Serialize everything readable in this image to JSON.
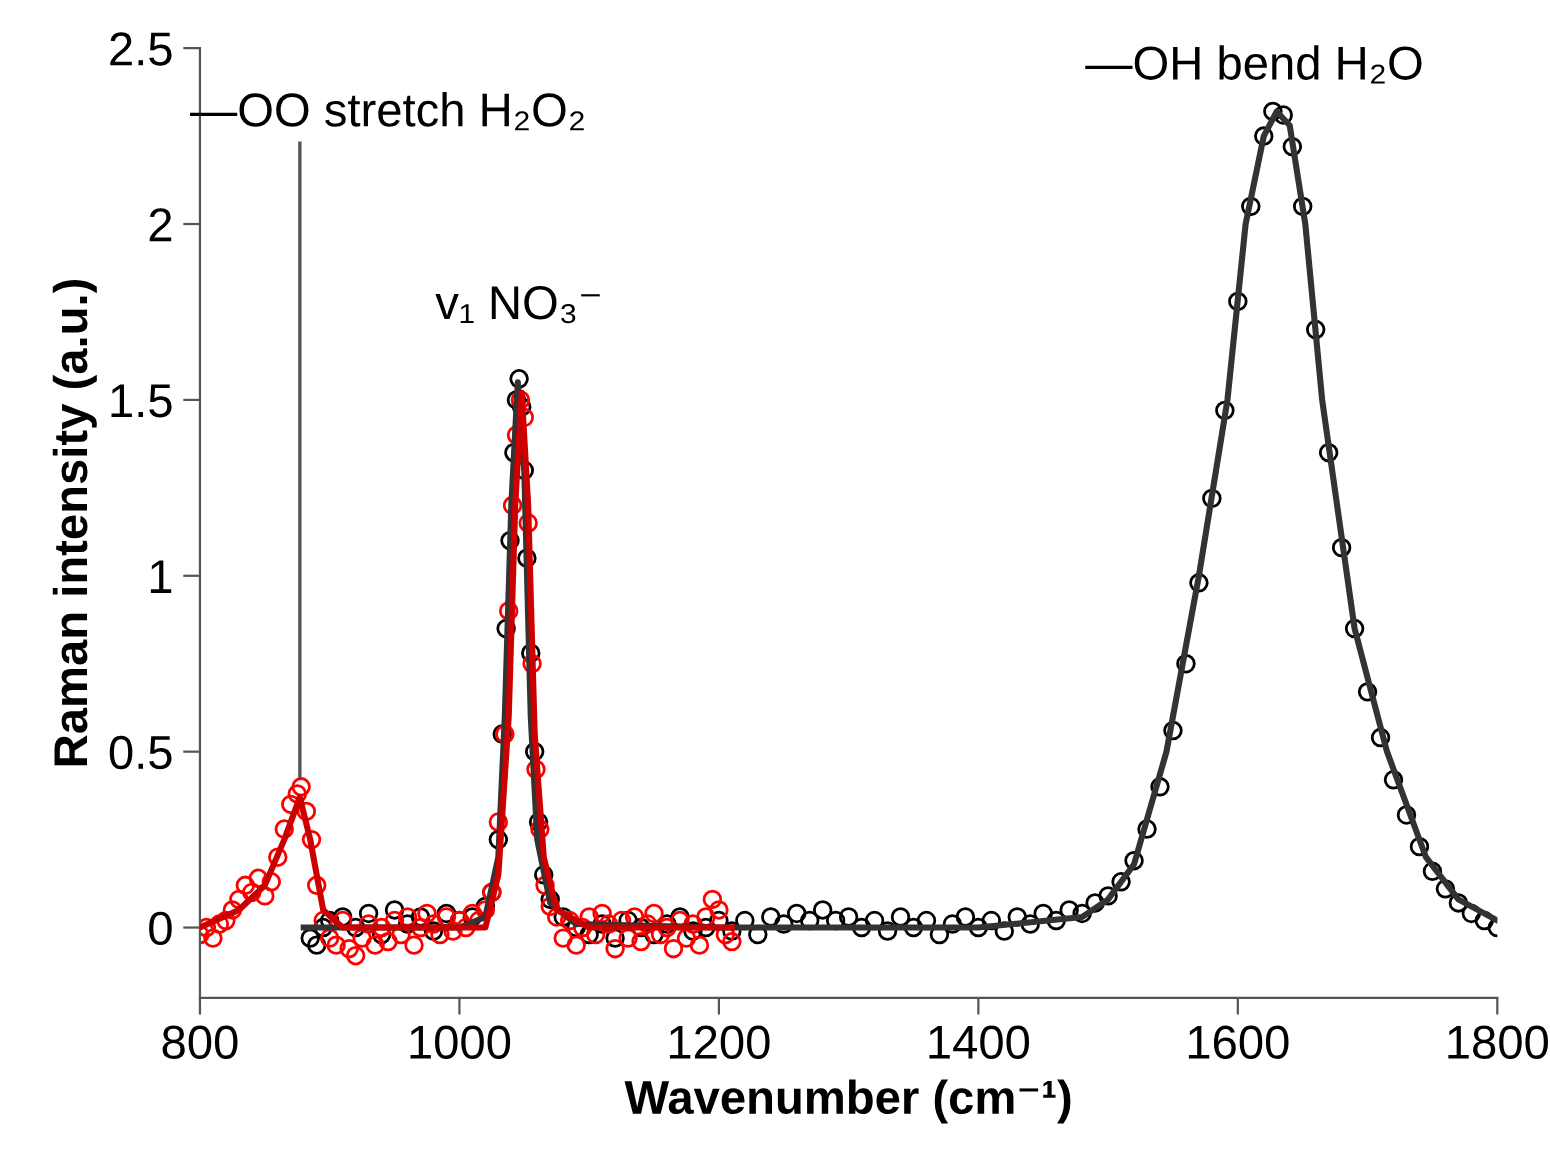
{
  "chart_data": {
    "type": "scatter",
    "xlabel": "Wavenumber (cm⁻¹)",
    "ylabel": "Raman intensity (a.u.)",
    "xlim": [
      800,
      1800
    ],
    "xticks": [
      800,
      1000,
      1200,
      1400,
      1600,
      1800
    ],
    "ylim": [
      -0.2,
      2.5
    ],
    "yticks": [
      0,
      0.5,
      1,
      1.5,
      2,
      2.5
    ],
    "grid": false,
    "legend": false,
    "annotations": [
      {
        "text": "—OO stretch H₂O₂",
        "x": 877,
        "y": 0.4
      },
      {
        "text": "v₁ NO₃⁻",
        "x": 1046,
        "y": 1.56
      },
      {
        "text": "—OH bend H₂O",
        "x": 1630,
        "y": 2.32
      }
    ],
    "series": [
      {
        "marker": "circle",
        "color": "#000000",
        "x": [
          885,
          890,
          895,
          900,
          910,
          920,
          930,
          940,
          950,
          960,
          970,
          980,
          990,
          1000,
          1010,
          1020,
          1025,
          1030,
          1033,
          1036,
          1039,
          1042,
          1044,
          1046,
          1048,
          1050,
          1052,
          1055,
          1058,
          1061,
          1065,
          1070,
          1080,
          1090,
          1100,
          1110,
          1120,
          1130,
          1140,
          1150,
          1160,
          1170,
          1180,
          1190,
          1200,
          1210,
          1220,
          1230,
          1240,
          1250,
          1260,
          1270,
          1280,
          1290,
          1300,
          1310,
          1320,
          1330,
          1340,
          1350,
          1360,
          1370,
          1380,
          1390,
          1400,
          1410,
          1420,
          1430,
          1440,
          1450,
          1460,
          1470,
          1480,
          1490,
          1500,
          1510,
          1520,
          1530,
          1540,
          1550,
          1560,
          1570,
          1580,
          1590,
          1600,
          1610,
          1620,
          1627,
          1635,
          1642,
          1650,
          1660,
          1670,
          1680,
          1690,
          1700,
          1710,
          1720,
          1730,
          1740,
          1750,
          1760,
          1770,
          1780,
          1790,
          1800
        ],
        "values": [
          -0.03,
          -0.05,
          0.0,
          0.02,
          0.03,
          0.0,
          0.04,
          -0.02,
          0.05,
          0.01,
          0.03,
          -0.01,
          0.04,
          0.02,
          0.03,
          0.06,
          0.1,
          0.25,
          0.55,
          0.85,
          1.1,
          1.35,
          1.5,
          1.56,
          1.48,
          1.3,
          1.05,
          0.78,
          0.5,
          0.3,
          0.15,
          0.08,
          0.03,
          0.0,
          -0.02,
          0.01,
          -0.03,
          0.02,
          0.0,
          -0.02,
          0.01,
          0.03,
          -0.01,
          0.0,
          0.02,
          -0.01,
          0.02,
          -0.02,
          0.03,
          0.01,
          0.04,
          0.02,
          0.05,
          0.02,
          0.03,
          0.0,
          0.02,
          -0.01,
          0.03,
          0.0,
          0.02,
          -0.02,
          0.01,
          0.03,
          0.0,
          0.02,
          -0.01,
          0.03,
          0.01,
          0.04,
          0.02,
          0.05,
          0.04,
          0.07,
          0.09,
          0.13,
          0.19,
          0.28,
          0.4,
          0.56,
          0.75,
          0.98,
          1.22,
          1.47,
          1.78,
          2.05,
          2.25,
          2.32,
          2.31,
          2.22,
          2.05,
          1.7,
          1.35,
          1.08,
          0.85,
          0.67,
          0.54,
          0.42,
          0.32,
          0.23,
          0.16,
          0.11,
          0.07,
          0.04,
          0.02,
          0.0
        ]
      },
      {
        "type": "line",
        "line_style": "solid",
        "color": "#333333",
        "x": [
          880,
          1000,
          1020,
          1030,
          1035,
          1040,
          1045,
          1050,
          1055,
          1060,
          1070,
          1090,
          1200,
          1400,
          1480,
          1500,
          1520,
          1545,
          1570,
          1592,
          1606,
          1620,
          1630,
          1640,
          1652,
          1665,
          1690,
          1715,
          1745,
          1770,
          1800
        ],
        "values": [
          0,
          0,
          0.03,
          0.2,
          0.6,
          1.2,
          1.55,
          1.3,
          0.6,
          0.25,
          0.07,
          0.01,
          0,
          0,
          0.03,
          0.08,
          0.18,
          0.5,
          1.0,
          1.5,
          2.0,
          2.25,
          2.32,
          2.28,
          2.0,
          1.5,
          0.85,
          0.5,
          0.2,
          0.08,
          0.02
        ]
      },
      {
        "marker": "circle",
        "color": "#ff0000",
        "x": [
          800,
          805,
          810,
          815,
          820,
          825,
          830,
          835,
          840,
          845,
          850,
          855,
          860,
          865,
          870,
          875,
          878,
          882,
          886,
          890,
          895,
          900,
          905,
          910,
          915,
          920,
          925,
          930,
          935,
          940,
          945,
          950,
          955,
          960,
          965,
          970,
          975,
          980,
          985,
          990,
          995,
          1000,
          1005,
          1010,
          1015,
          1020,
          1025,
          1030,
          1035,
          1038,
          1041,
          1044,
          1047,
          1050,
          1053,
          1056,
          1059,
          1062,
          1066,
          1070,
          1075,
          1080,
          1085,
          1090,
          1095,
          1100,
          1105,
          1110,
          1115,
          1120,
          1125,
          1130,
          1135,
          1140,
          1145,
          1150,
          1155,
          1160,
          1165,
          1170,
          1175,
          1180,
          1185,
          1190,
          1195,
          1200,
          1205,
          1210
        ],
        "values": [
          -0.02,
          0.0,
          -0.03,
          0.01,
          0.02,
          0.05,
          0.08,
          0.12,
          0.1,
          0.14,
          0.09,
          0.13,
          0.2,
          0.28,
          0.35,
          0.38,
          0.4,
          0.33,
          0.25,
          0.12,
          0.02,
          -0.03,
          -0.05,
          0.02,
          -0.06,
          -0.08,
          -0.03,
          0.01,
          -0.05,
          0.0,
          -0.04,
          0.02,
          -0.02,
          0.03,
          -0.05,
          0.0,
          0.04,
          0.01,
          -0.02,
          0.03,
          -0.01,
          0.02,
          0.0,
          0.04,
          0.02,
          0.05,
          0.1,
          0.3,
          0.55,
          0.9,
          1.2,
          1.4,
          1.5,
          1.45,
          1.15,
          0.75,
          0.45,
          0.28,
          0.12,
          0.06,
          0.03,
          -0.03,
          0.02,
          -0.05,
          0.0,
          0.03,
          -0.02,
          0.04,
          0.01,
          -0.06,
          0.02,
          -0.03,
          0.03,
          -0.04,
          0.01,
          0.04,
          -0.02,
          0.0,
          -0.06,
          0.02,
          -0.03,
          0.01,
          -0.05,
          0.03,
          0.08,
          0.05,
          -0.02,
          -0.04
        ]
      },
      {
        "type": "line",
        "line_style": "solid",
        "color": "#cc0000",
        "x": [
          800,
          830,
          850,
          865,
          877,
          885,
          895,
          910,
          1020,
          1030,
          1038,
          1043,
          1048,
          1053,
          1058,
          1065,
          1075,
          1100,
          1210
        ],
        "values": [
          0,
          0.05,
          0.12,
          0.25,
          0.37,
          0.25,
          0.05,
          0,
          0,
          0.15,
          0.6,
          1.2,
          1.52,
          1.2,
          0.55,
          0.2,
          0.05,
          0,
          0
        ]
      }
    ]
  }
}
